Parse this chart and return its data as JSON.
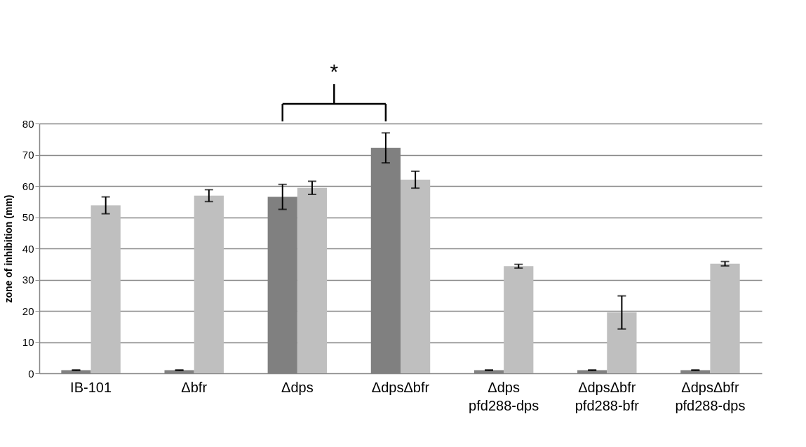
{
  "chart_data": {
    "type": "bar",
    "categories": [
      "IB-101",
      "Δbfr",
      "Δdps",
      "ΔdpsΔbfr",
      "Δdps\npfd288-dps",
      "ΔdpsΔbfr\npfd288-bfr",
      "ΔdpsΔbfr\npfd288-dps"
    ],
    "ylabel": "zone of inhibition (mm)",
    "series": [
      {
        "color": "#808080",
        "values": [
          1,
          1,
          56.5,
          72.2,
          1,
          1,
          1
        ],
        "errors": [
          0.1,
          0.1,
          4,
          4.8,
          0.1,
          0.1,
          0.1
        ]
      },
      {
        "color": "#bfbfbf",
        "values": [
          53.8,
          56.9,
          59.4,
          62,
          34.3,
          19.5,
          35.1
        ],
        "errors": [
          2.7,
          1.9,
          2.1,
          2.7,
          0.6,
          5.3,
          0.7
        ]
      }
    ],
    "ylim": [
      0,
      80
    ],
    "yticks": [
      0,
      10,
      20,
      30,
      40,
      50,
      60,
      70,
      80
    ],
    "grid": "y",
    "legend": false,
    "annotations": [
      "*"
    ]
  }
}
